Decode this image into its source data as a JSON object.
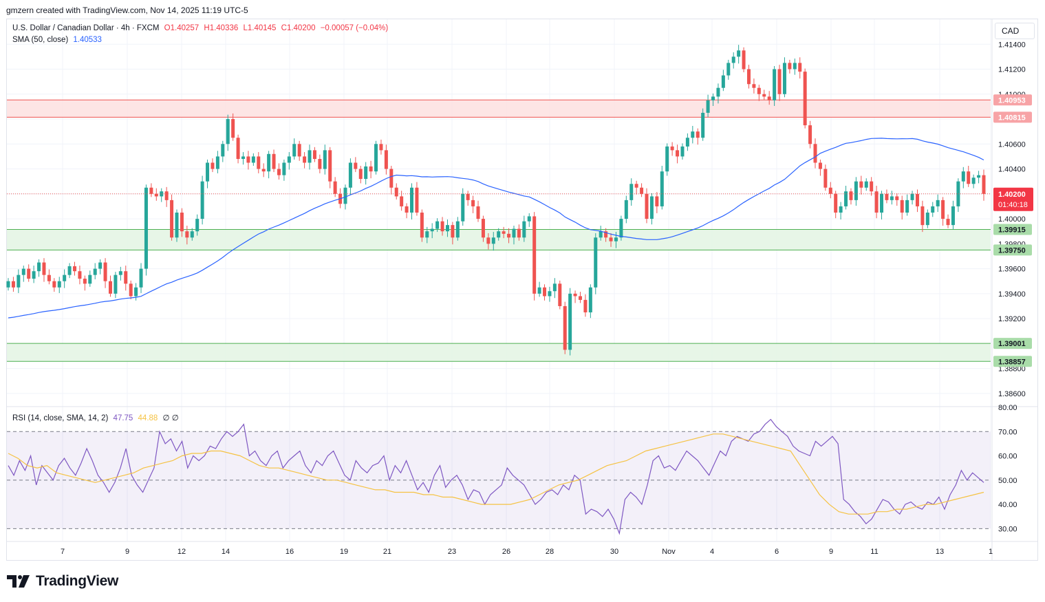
{
  "header": {
    "text": "gmzern created with TradingView.com, Nov 14, 2025 11:19 UTC-5"
  },
  "legend": {
    "symbol": "U.S. Dollar / Canadian Dollar · 4h · FXCM",
    "o": "O1.40257",
    "h": "H1.40336",
    "l": "L1.40145",
    "c": "C1.40200",
    "chg": "−0.00057 (−0.04%)",
    "sma_label": "SMA (50, close)",
    "sma_value": "1.40533",
    "rsi_label": "RSI (14, close, SMA, 14, 2)",
    "rsi_value": "47.75",
    "rsi_sma_value": "44.88",
    "rsi_extra": "∅ ∅"
  },
  "currency_button": "CAD",
  "footer": {
    "brand": "TradingView"
  },
  "colors": {
    "up": "#26a69a",
    "down": "#ef5350",
    "sma": "#2962ff",
    "rsi": "#7e57c2",
    "rsi_sma": "#f5c242",
    "resistance_zone": "#fde1e1",
    "support_zone": "#e3f4e3",
    "support_line": "#4caf50",
    "resistance_line": "#ef5350"
  },
  "chart_data": [
    {
      "type": "candlestick",
      "ylim": [
        1.385,
        1.416
      ],
      "price_ticks": [
        "1.38600",
        "1.38800",
        "1.39200",
        "1.39400",
        "1.39600",
        "1.39800",
        "1.40000",
        "1.40400",
        "1.40600",
        "1.41000",
        "1.41200",
        "1.41400"
      ],
      "x_ticks": [
        "7",
        "9",
        "12",
        "14",
        "16",
        "19",
        "21",
        "23",
        "26",
        "28",
        "30",
        "Nov",
        "4",
        "6",
        "9",
        "11",
        "13",
        "1"
      ],
      "last_price": "1.40200",
      "countdown": "01:40:18",
      "zones": [
        {
          "name": "resistance",
          "from": 1.40815,
          "to": 1.40953,
          "labels": [
            "1.40953",
            "1.40815"
          ]
        },
        {
          "name": "support-upper",
          "from": 1.3975,
          "to": 1.39915,
          "labels": [
            "1.39915",
            "1.39750"
          ]
        },
        {
          "name": "support-lower",
          "from": 1.38857,
          "to": 1.39001,
          "labels": [
            "1.39001",
            "1.38857"
          ]
        }
      ],
      "closes": [
        1.395,
        1.3945,
        1.3955,
        1.396,
        1.3952,
        1.3958,
        1.3965,
        1.3955,
        1.395,
        1.3945,
        1.395,
        1.3955,
        1.3962,
        1.3958,
        1.3952,
        1.3948,
        1.3955,
        1.396,
        1.3965,
        1.395,
        1.394,
        1.3955,
        1.3958,
        1.3948,
        1.3938,
        1.3945,
        1.396,
        1.4025,
        1.402,
        1.4018,
        1.4022,
        1.4015,
        1.3985,
        1.4005,
        1.399,
        1.3985,
        1.399,
        1.4,
        1.403,
        1.4045,
        1.404,
        1.405,
        1.406,
        1.408,
        1.4065,
        1.4048,
        1.405,
        1.4045,
        1.405,
        1.404,
        1.4038,
        1.4052,
        1.404,
        1.4035,
        1.4045,
        1.405,
        1.406,
        1.405,
        1.4045,
        1.4055,
        1.4048,
        1.404,
        1.4055,
        1.403,
        1.402,
        1.4012,
        1.4025,
        1.4045,
        1.404,
        1.4032,
        1.4042,
        1.4038,
        1.406,
        1.4055,
        1.404,
        1.4025,
        1.4018,
        1.401,
        1.4005,
        1.4025,
        1.4005,
        1.3985,
        1.399,
        1.3992,
        1.3998,
        1.399,
        1.3995,
        1.3985,
        1.3998,
        1.402,
        1.4015,
        1.401,
        1.4,
        1.3985,
        1.398,
        1.3985,
        1.399,
        1.3988,
        1.3985,
        1.3992,
        1.3985,
        1.3998,
        1.4002,
        1.394,
        1.3945,
        1.3938,
        1.3942,
        1.3948,
        1.393,
        1.3895,
        1.394,
        1.3938,
        1.3935,
        1.3925,
        1.3945,
        1.3985,
        1.399,
        1.3985,
        1.3982,
        1.3985,
        1.4,
        1.4015,
        1.4028,
        1.4025,
        1.402,
        1.4,
        1.4018,
        1.401,
        1.4038,
        1.4058,
        1.4055,
        1.405,
        1.4058,
        1.4065,
        1.407,
        1.4065,
        1.4085,
        1.4095,
        1.4098,
        1.4105,
        1.4115,
        1.4125,
        1.413,
        1.4135,
        1.412,
        1.4108,
        1.4105,
        1.41,
        1.4098,
        1.4095,
        1.412,
        1.41,
        1.4125,
        1.412,
        1.4125,
        1.4118,
        1.4075,
        1.406,
        1.4045,
        1.404,
        1.4025,
        1.402,
        1.4005,
        1.401,
        1.4022,
        1.4015,
        1.403,
        1.4025,
        1.403,
        1.4022,
        1.4005,
        1.402,
        1.4015,
        1.4018,
        1.4015,
        1.4005,
        1.4015,
        1.402,
        1.401,
        1.3995,
        1.4005,
        1.401,
        1.4015,
        1.4,
        1.3995,
        1.401,
        1.403,
        1.4038,
        1.4028,
        1.4033,
        1.4035,
        1.402
      ]
    },
    {
      "type": "line",
      "name": "RSI (14, close, SMA, 14, 2)",
      "ylim": [
        25,
        80
      ],
      "y_ticks": [
        "80.00",
        "70.00",
        "60.00",
        "50.00",
        "40.00",
        "30.00"
      ],
      "series": [
        {
          "name": "RSI",
          "values": [
            56,
            52,
            58,
            54,
            60,
            48,
            56,
            53,
            50,
            56,
            59,
            55,
            52,
            57,
            63,
            58,
            52,
            49,
            45,
            49,
            55,
            63,
            52,
            48,
            45,
            50,
            55,
            70,
            65,
            67,
            62,
            66,
            55,
            60,
            58,
            60,
            64,
            63,
            67,
            70,
            68,
            70,
            73,
            60,
            62,
            58,
            56,
            60,
            62,
            55,
            58,
            60,
            62,
            56,
            53,
            58,
            56,
            60,
            62,
            57,
            52,
            50,
            58,
            55,
            53,
            56,
            57,
            60,
            50,
            56,
            53,
            58,
            52,
            46,
            49,
            45,
            52,
            56,
            47,
            50,
            52,
            48,
            42,
            46,
            45,
            40,
            44,
            46,
            48,
            55,
            52,
            50,
            48,
            44,
            40,
            42,
            45,
            46,
            44,
            48,
            46,
            52,
            50,
            36,
            38,
            37,
            35,
            38,
            34,
            28,
            42,
            45,
            43,
            40,
            48,
            58,
            60,
            55,
            56,
            54,
            58,
            62,
            60,
            58,
            55,
            52,
            57,
            62,
            60,
            66,
            68,
            67,
            66,
            69,
            70,
            73,
            75,
            72,
            70,
            68,
            64,
            62,
            61,
            60,
            66,
            64,
            66,
            68,
            65,
            42,
            40,
            37,
            35,
            32,
            34,
            38,
            42,
            41,
            38,
            36,
            40,
            41,
            39,
            38,
            41,
            40,
            43,
            38,
            44,
            48,
            54,
            50,
            53,
            51,
            49
          ],
          "last": "47.75"
        },
        {
          "name": "RSI-based MA",
          "values": [
            61,
            59,
            56,
            55,
            56,
            53,
            52,
            51,
            50,
            49,
            50,
            51,
            52,
            53,
            55,
            56,
            57,
            58,
            60,
            61,
            61,
            62,
            62,
            61,
            60,
            58,
            56,
            55,
            55,
            54,
            53,
            52,
            51,
            50,
            50,
            49,
            48,
            47,
            46,
            46,
            45,
            45,
            45,
            44,
            44,
            43,
            43,
            42,
            41,
            40,
            40,
            40,
            40,
            41,
            42,
            44,
            46,
            48,
            49,
            50,
            52,
            54,
            56,
            57,
            58,
            60,
            62,
            63,
            64,
            65,
            66,
            67,
            68,
            69,
            69,
            68,
            67,
            66,
            65,
            64,
            63,
            62,
            56,
            50,
            44,
            40,
            37,
            36,
            36,
            36,
            37,
            37,
            38,
            38,
            39,
            40,
            40,
            41,
            42,
            43,
            44,
            45
          ],
          "last": "44.88"
        }
      ]
    }
  ]
}
